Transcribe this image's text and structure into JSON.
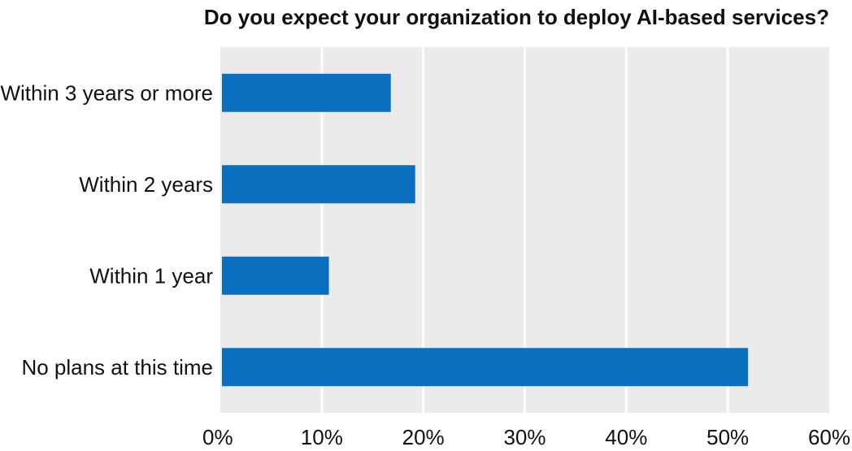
{
  "chart_data": {
    "type": "bar",
    "orientation": "horizontal",
    "title": "Do you expect your organization to deploy AI-based services?",
    "xlabel": "",
    "ylabel": "",
    "categories": [
      "Within 3 years or more",
      "Within 2 years",
      "Within 1 year",
      "No plans at this time"
    ],
    "values": [
      16.8,
      19.2,
      10.7,
      52.0
    ],
    "value_unit": "%",
    "xlim": [
      0,
      60
    ],
    "x_ticks": [
      "0%",
      "10%",
      "20%",
      "30%",
      "40%",
      "50%",
      "60%"
    ],
    "grid": "vertical",
    "legend": "none",
    "colors": {
      "bar": "#0a6fbe",
      "plot_background": "#ebebeb",
      "gridline": "#ffffff",
      "text": "#111111"
    }
  }
}
